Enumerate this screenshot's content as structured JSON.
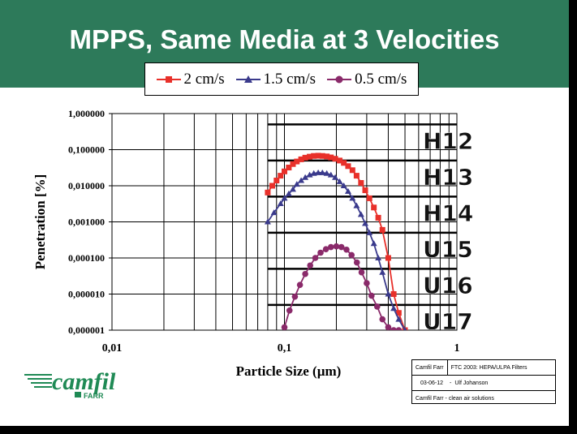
{
  "title": "MPPS, Same Media at 3 Velocities",
  "colors": {
    "banner": "#2d7a5a",
    "s1": "#e8302a",
    "s2": "#3a3a8c",
    "s3": "#8a2a6a"
  },
  "info": {
    "company": "Camfil Farr",
    "doc": "FTC 2003: HEPA/ULPA Filters",
    "date": "03-06-12",
    "author": "Ulf Johanson",
    "tagline": "Camfil Farr - clean air solutions"
  },
  "logo": {
    "name": "camfil",
    "sub": "FARR"
  },
  "chart_data": {
    "type": "line",
    "title": "",
    "xlabel": "Particle Size (µm)",
    "ylabel": "Penetration [%]",
    "x_scale": "log",
    "y_scale": "log",
    "xlim": [
      0.01,
      1
    ],
    "ylim": [
      1e-06,
      1
    ],
    "grid": true,
    "legend": "top-center",
    "x_ticks": [
      "0,01",
      "0,1",
      "1"
    ],
    "y_ticks": [
      "0,000001",
      "0,000010",
      "0,000100",
      "0,001000",
      "0,010000",
      "0,100000",
      "1,000000"
    ],
    "class_limits": [
      {
        "label": "H12",
        "value": 0.5
      },
      {
        "label": "H13",
        "value": 0.05
      },
      {
        "label": "H14",
        "value": 0.005
      },
      {
        "label": "U15",
        "value": 0.0005
      },
      {
        "label": "U16",
        "value": 5e-05
      },
      {
        "label": "U17",
        "value": 5e-06
      }
    ],
    "series": [
      {
        "name": "2 cm/s",
        "color": "#e8302a",
        "marker": "square",
        "x": [
          0.08,
          0.085,
          0.09,
          0.095,
          0.1,
          0.106,
          0.112,
          0.118,
          0.125,
          0.132,
          0.14,
          0.148,
          0.157,
          0.166,
          0.176,
          0.186,
          0.197,
          0.209,
          0.221,
          0.234,
          0.248,
          0.262,
          0.278,
          0.294,
          0.311,
          0.33,
          0.35,
          0.37,
          0.4,
          0.43,
          0.46,
          0.5
        ],
        "y": [
          0.0065,
          0.01,
          0.014,
          0.019,
          0.025,
          0.032,
          0.04,
          0.047,
          0.054,
          0.06,
          0.064,
          0.067,
          0.068,
          0.067,
          0.065,
          0.061,
          0.056,
          0.05,
          0.043,
          0.035,
          0.027,
          0.019,
          0.012,
          0.0075,
          0.0045,
          0.0025,
          0.0013,
          0.0006,
          0.0001,
          1e-05,
          3e-06,
          1e-06
        ]
      },
      {
        "name": "1.5 cm/s",
        "color": "#3a3a8c",
        "marker": "triangle",
        "x": [
          0.08,
          0.087,
          0.095,
          0.1,
          0.106,
          0.112,
          0.118,
          0.125,
          0.132,
          0.14,
          0.148,
          0.157,
          0.166,
          0.176,
          0.186,
          0.197,
          0.209,
          0.221,
          0.234,
          0.248,
          0.262,
          0.278,
          0.294,
          0.311,
          0.33,
          0.35,
          0.37,
          0.4,
          0.43,
          0.46,
          0.5
        ],
        "y": [
          0.001,
          0.0018,
          0.0032,
          0.0045,
          0.006,
          0.008,
          0.011,
          0.014,
          0.017,
          0.02,
          0.022,
          0.023,
          0.023,
          0.022,
          0.02,
          0.017,
          0.013,
          0.01,
          0.007,
          0.0045,
          0.0028,
          0.0016,
          0.0009,
          0.0005,
          0.00025,
          0.0001,
          4e-05,
          1e-05,
          4e-06,
          2e-06,
          1e-06
        ]
      },
      {
        "name": "0.5 cm/s",
        "color": "#8a2a6a",
        "marker": "circle",
        "x": [
          0.1,
          0.107,
          0.115,
          0.123,
          0.132,
          0.141,
          0.151,
          0.162,
          0.174,
          0.186,
          0.2,
          0.214,
          0.229,
          0.245,
          0.263,
          0.28,
          0.3,
          0.32,
          0.345,
          0.37,
          0.4,
          0.43,
          0.46
        ],
        "y": [
          1.2e-06,
          3.5e-06,
          8.5e-06,
          1.8e-05,
          3.6e-05,
          6.2e-05,
          0.0001,
          0.00014,
          0.000175,
          0.0002,
          0.00021,
          0.0002,
          0.00017,
          0.00012,
          7.5e-05,
          4e-05,
          2e-05,
          9e-06,
          4.5e-06,
          2e-06,
          1.2e-06,
          1e-06,
          1e-06
        ]
      }
    ]
  }
}
